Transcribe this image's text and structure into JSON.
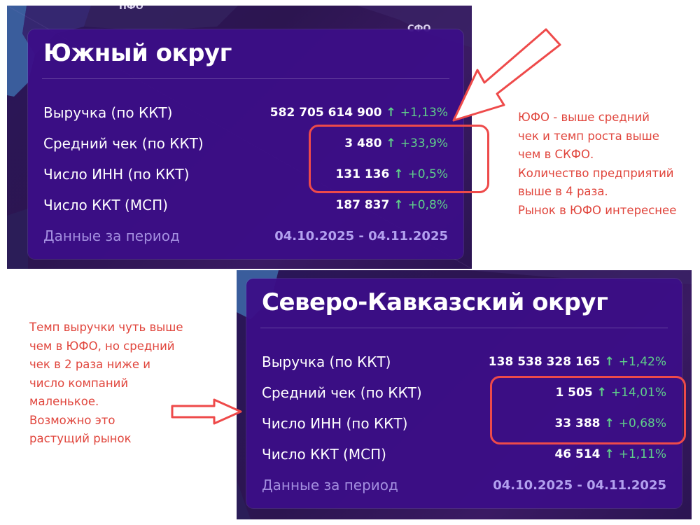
{
  "top_panel": {
    "map_labels": {
      "left": "ПФО",
      "right": "СФО"
    },
    "title": "Южный округ",
    "rows": [
      {
        "label": "Выручка (по ККТ)",
        "value": "582 705 614 900",
        "arrow": "↑",
        "delta": "+1,13%"
      },
      {
        "label": "Средний чек (по ККТ)",
        "value": "3 480",
        "arrow": "↑",
        "delta": "+33,9%"
      },
      {
        "label": "Число ИНН (по ККТ)",
        "value": "131 136",
        "arrow": "↑",
        "delta": "+0,5%"
      },
      {
        "label": "Число ККТ (МСП)",
        "value": "187 837",
        "arrow": "↑",
        "delta": "+0,8%"
      }
    ],
    "period_label": "Данные за период",
    "period_value": "04.10.2025 - 04.11.2025"
  },
  "bottom_panel": {
    "title": "Северо-Кавказский округ",
    "rows": [
      {
        "label": "Выручка (по ККТ)",
        "value": "138 538 328 165",
        "arrow": "↑",
        "delta": "+1,42%"
      },
      {
        "label": "Средний чек (по ККТ)",
        "value": "1 505",
        "arrow": "↑",
        "delta": "+14,01%"
      },
      {
        "label": "Число ИНН (по ККТ)",
        "value": "33 388",
        "arrow": "↑",
        "delta": "+0,68%"
      },
      {
        "label": "Число ККТ (МСП)",
        "value": "46 514",
        "arrow": "↑",
        "delta": "+1,11%"
      }
    ],
    "period_label": "Данные за период",
    "period_value": "04.10.2025 - 04.11.2025"
  },
  "notes": {
    "right": [
      "ЮФО - выше средний",
      "чек и темп роста выше",
      "чем в СКФО.",
      "Количество предприятий",
      "выше в 4 раза.",
      "Рынок в ЮФО интереснее"
    ],
    "left": [
      "Темп выручки чуть выше",
      "чем в ЮФО, но средний",
      "чек в 2 раза ниже и",
      "число компаний",
      "маленькое.",
      "Возможно это",
      "растущий рынок"
    ]
  },
  "colors": {
    "card_bg": "#3c0e87",
    "delta_green": "#5fd08a",
    "annotation_red": "#e0453c",
    "period_purple": "#b3a1ef"
  }
}
